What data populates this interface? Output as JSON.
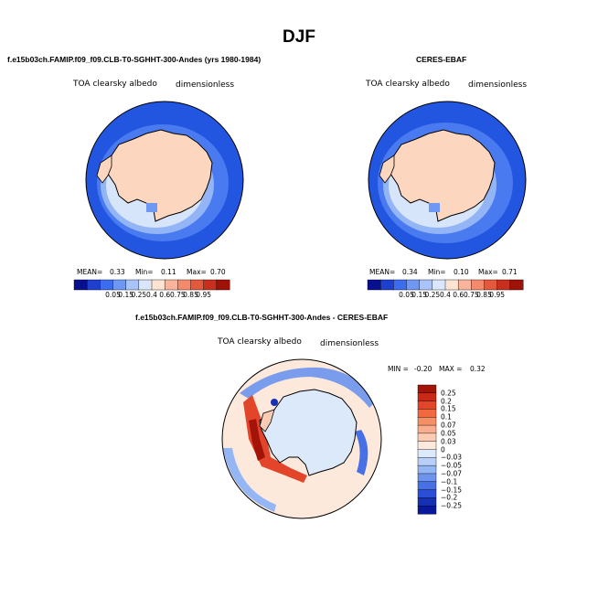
{
  "title": "DJF",
  "panels": [
    {
      "id": "model",
      "title": "f.e15b03ch.FAMIP.f09_f09.CLB-T0-SGHHT-300-Andes (yrs 1980-1984)",
      "variable": "TOA clearsky albedo",
      "units": "dimensionless",
      "mean_label": "MEAN=",
      "mean": "0.33",
      "min_label": "Min=",
      "min": "0.11",
      "max_label": "Max=",
      "max": "0.70"
    },
    {
      "id": "obs",
      "title": "CERES-EBAF",
      "variable": "TOA clearsky albedo",
      "units": "dimensionless",
      "mean_label": "MEAN=",
      "mean": "0.34",
      "min_label": "Min=",
      "min": "0.10",
      "max_label": "Max=",
      "max": "0.71"
    }
  ],
  "colorbar": {
    "labels": [
      "0.05",
      "0.15",
      "0.25",
      "0.4",
      "0.6",
      "0.75",
      "0.85",
      "0.95"
    ],
    "colors": [
      "#08108f",
      "#1f3fd1",
      "#3c6cf0",
      "#6f98f5",
      "#a9c4fa",
      "#d9e6fb",
      "#fde3d1",
      "#f9b49b",
      "#f28a6b",
      "#e4583b",
      "#c82f1e",
      "#9e1208"
    ]
  },
  "diff": {
    "title": "f.e15b03ch.FAMIP.f09_f09.CLB-T0-SGHHT-300-Andes - CERES-EBAF",
    "variable": "TOA clearsky albedo",
    "units": "dimensionless",
    "min_label": "MIN =",
    "min": "-0.20",
    "max_label": "MAX =",
    "max": "0.32",
    "colorbar_labels": [
      "0.25",
      "0.2",
      "0.15",
      "0.1",
      "0.07",
      "0.05",
      "0.03",
      "0",
      "−0.03",
      "−0.05",
      "−0.07",
      "−0.1",
      "−0.15",
      "−0.2",
      "−0.25"
    ],
    "colorbar_colors": [
      "#a41308",
      "#c82a16",
      "#e2452a",
      "#f2683f",
      "#f58f66",
      "#f8ae8d",
      "#fbccb4",
      "#fde9dc",
      "#dce9fb",
      "#b8d0f8",
      "#94b6f4",
      "#6c94ee",
      "#4870e6",
      "#2a4ed6",
      "#1530b4",
      "#08189a"
    ]
  },
  "chart_data": [
    {
      "type": "heatmap",
      "map": "south-polar-stereographic",
      "title": "f.e15b03ch.FAMIP.f09_f09.CLB-T0-SGHHT-300-Andes (yrs 1980-1984)",
      "variable": "TOA clearsky albedo",
      "units": "dimensionless",
      "mean": 0.33,
      "min": 0.11,
      "max": 0.7,
      "levels": [
        0.05,
        0.15,
        0.25,
        0.4,
        0.6,
        0.75,
        0.85,
        0.95
      ]
    },
    {
      "type": "heatmap",
      "map": "south-polar-stereographic",
      "title": "CERES-EBAF",
      "variable": "TOA clearsky albedo",
      "units": "dimensionless",
      "mean": 0.34,
      "min": 0.1,
      "max": 0.71,
      "levels": [
        0.05,
        0.15,
        0.25,
        0.4,
        0.6,
        0.75,
        0.85,
        0.95
      ]
    },
    {
      "type": "heatmap",
      "map": "south-polar-stereographic",
      "title": "f.e15b03ch.FAMIP.f09_f09.CLB-T0-SGHHT-300-Andes - CERES-EBAF",
      "variable": "TOA clearsky albedo",
      "units": "dimensionless",
      "min": -0.2,
      "max": 0.32,
      "levels": [
        -0.25,
        -0.2,
        -0.15,
        -0.1,
        -0.07,
        -0.05,
        -0.03,
        0,
        0.03,
        0.05,
        0.07,
        0.1,
        0.15,
        0.2,
        0.25
      ]
    }
  ]
}
